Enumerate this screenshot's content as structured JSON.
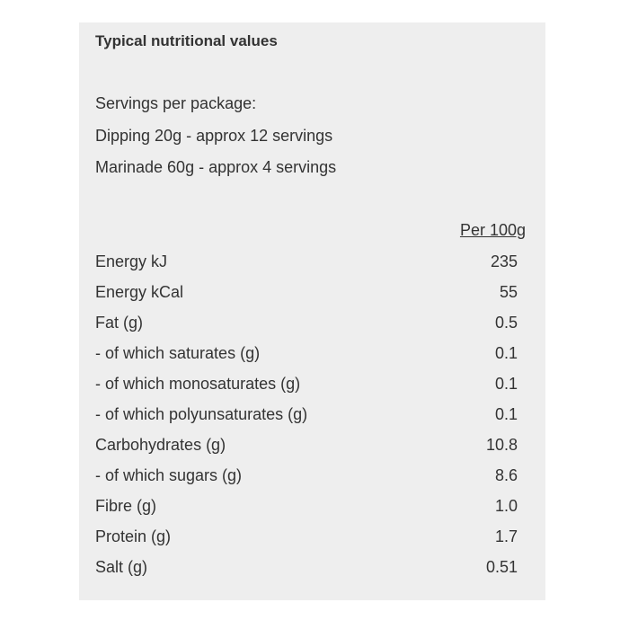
{
  "title": "Typical nutritional values",
  "servings": {
    "heading": "Servings per package:",
    "lines": [
      "Dipping 20g - approx 12 servings",
      "Marinade 60g - approx 4 servings"
    ]
  },
  "table": {
    "column_header": "Per 100g",
    "rows": [
      {
        "label": "Energy kJ",
        "value": "235"
      },
      {
        "label": "Energy kCal",
        "value": "55"
      },
      {
        "label": "Fat (g)",
        "value": "0.5"
      },
      {
        "label": "- of which saturates (g)",
        "value": "0.1"
      },
      {
        "label": "- of which monosaturates (g)",
        "value": "0.1"
      },
      {
        "label": "- of which polyunsaturates (g)",
        "value": "0.1"
      },
      {
        "label": "Carbohydrates (g)",
        "value": "10.8"
      },
      {
        "label": "- of which sugars (g)",
        "value": "8.6"
      },
      {
        "label": "Fibre (g)",
        "value": "1.0"
      },
      {
        "label": "Protein (g)",
        "value": "1.7"
      },
      {
        "label": "Salt (g)",
        "value": "0.51"
      }
    ]
  }
}
